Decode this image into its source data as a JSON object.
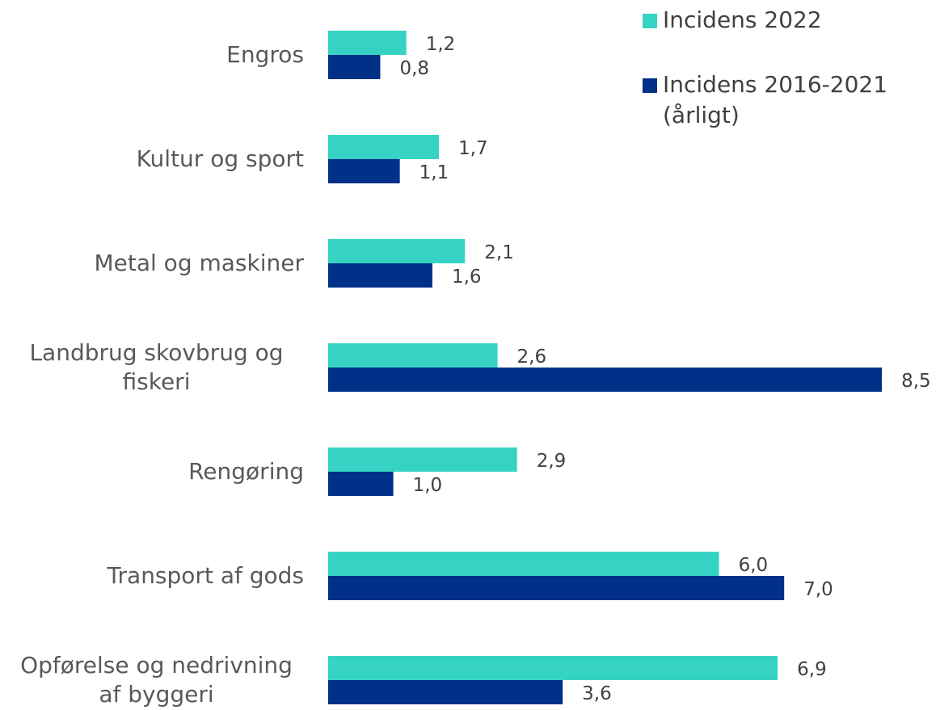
{
  "chart_data": {
    "type": "bar",
    "orientation": "horizontal",
    "categories": [
      "Engros",
      "Kultur og sport",
      "Metal og maskiner",
      "Landbrug skovbrug og fiskeri",
      "Rengøring",
      "Transport af gods",
      "Opførelse og nedrivning af byggeri"
    ],
    "series": [
      {
        "name": "Incidens 2022",
        "color": "#36d3c4",
        "values": [
          1.2,
          1.7,
          2.1,
          2.6,
          2.9,
          6.0,
          6.9
        ],
        "value_labels": [
          "1,2",
          "1,7",
          "2,1",
          "2,6",
          "2,9",
          "6,0",
          "6,9"
        ]
      },
      {
        "name": "Incidens 2016-2021 (årligt)",
        "color": "#003087",
        "values": [
          0.8,
          1.1,
          1.6,
          8.5,
          1.0,
          7.0,
          3.6
        ],
        "value_labels": [
          "0,8",
          "1,1",
          "1,6",
          "8,5",
          "1,0",
          "7,0",
          "3,6"
        ]
      }
    ],
    "legend": "top-right"
  }
}
